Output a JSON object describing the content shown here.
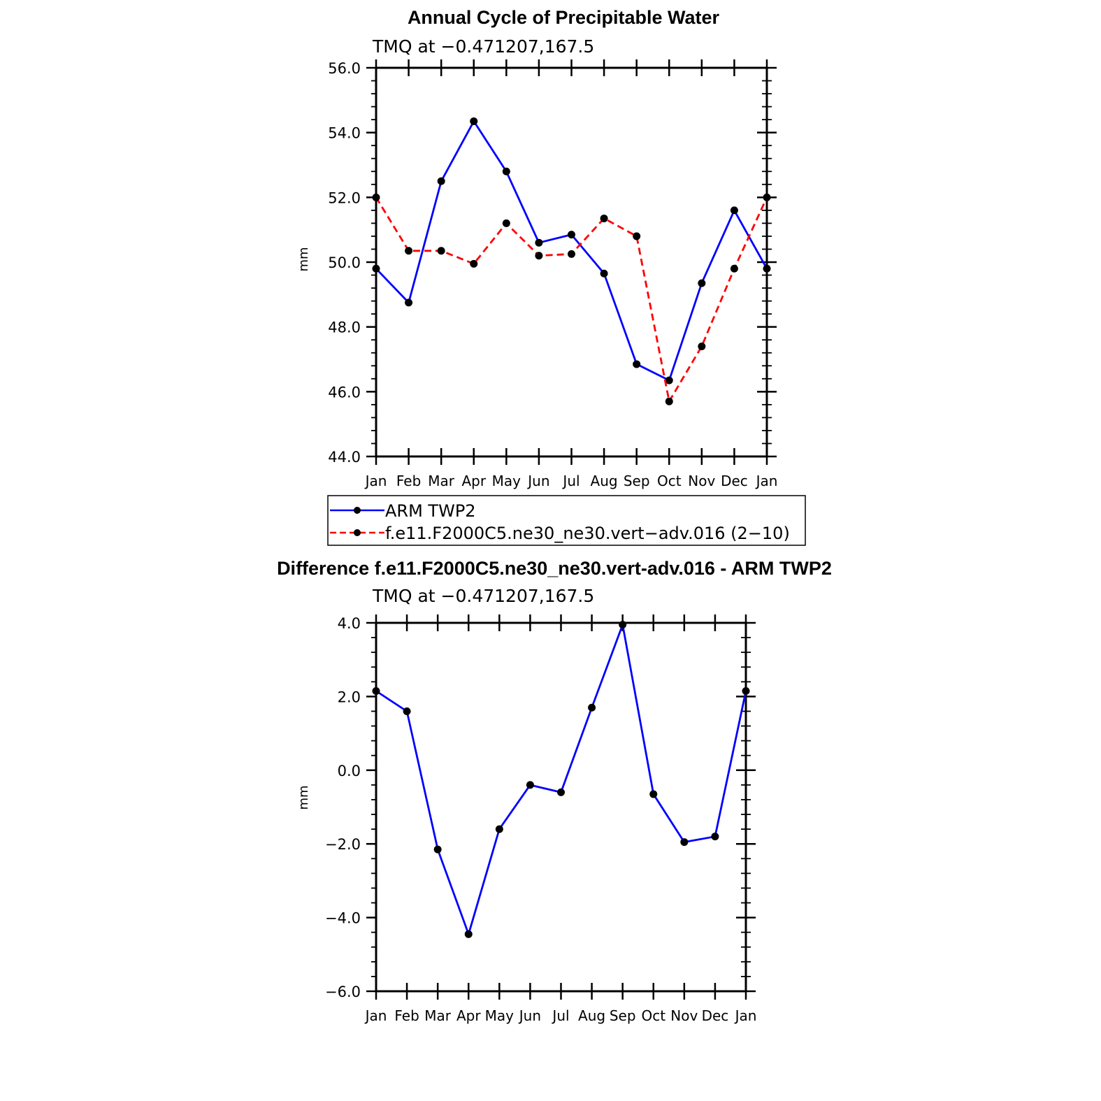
{
  "chart_data": [
    {
      "type": "line",
      "title": "Annual Cycle of Precipitable Water",
      "subtitle": "TMQ at −0.471207,167.5",
      "xlabel": "",
      "ylabel": "mm",
      "categories": [
        "Jan",
        "Feb",
        "Mar",
        "Apr",
        "May",
        "Jun",
        "Jul",
        "Aug",
        "Sep",
        "Oct",
        "Nov",
        "Dec",
        "Jan"
      ],
      "ylim": [
        44.0,
        56.0
      ],
      "yticks": [
        "44.0",
        "46.0",
        "48.0",
        "50.0",
        "52.0",
        "54.0",
        "56.0"
      ],
      "grid": false,
      "legend_position": "below",
      "series": [
        {
          "name": "ARM TWP2",
          "color": "#0000ff",
          "dash": "solid",
          "values": [
            49.8,
            48.75,
            52.5,
            54.35,
            52.8,
            50.6,
            50.85,
            49.65,
            46.85,
            46.35,
            49.35,
            51.6,
            49.8
          ]
        },
        {
          "name": "f.e11.F2000C5.ne30_ne30.vert−adv.016 (2−10)",
          "color": "#ff0000",
          "dash": "dashed",
          "values": [
            52.0,
            50.35,
            50.35,
            49.95,
            51.2,
            50.2,
            50.25,
            51.35,
            50.8,
            45.7,
            47.4,
            49.8,
            52.0
          ]
        }
      ]
    },
    {
      "type": "line",
      "title": "Difference f.e11.F2000C5.ne30_ne30.vert-adv.016 - ARM TWP2",
      "subtitle": "TMQ at −0.471207,167.5",
      "xlabel": "",
      "ylabel": "mm",
      "categories": [
        "Jan",
        "Feb",
        "Mar",
        "Apr",
        "May",
        "Jun",
        "Jul",
        "Aug",
        "Sep",
        "Oct",
        "Nov",
        "Dec",
        "Jan"
      ],
      "ylim": [
        -6.0,
        4.0
      ],
      "yticks": [
        "−6.0",
        "−4.0",
        "−2.0",
        "0.0",
        "2.0",
        "4.0"
      ],
      "grid": false,
      "series": [
        {
          "color": "#0000ff",
          "dash": "solid",
          "values": [
            2.15,
            1.6,
            -2.15,
            -4.45,
            -1.6,
            -0.4,
            -0.6,
            1.7,
            3.95,
            -0.65,
            -1.95,
            -1.8,
            2.15
          ]
        }
      ]
    }
  ]
}
